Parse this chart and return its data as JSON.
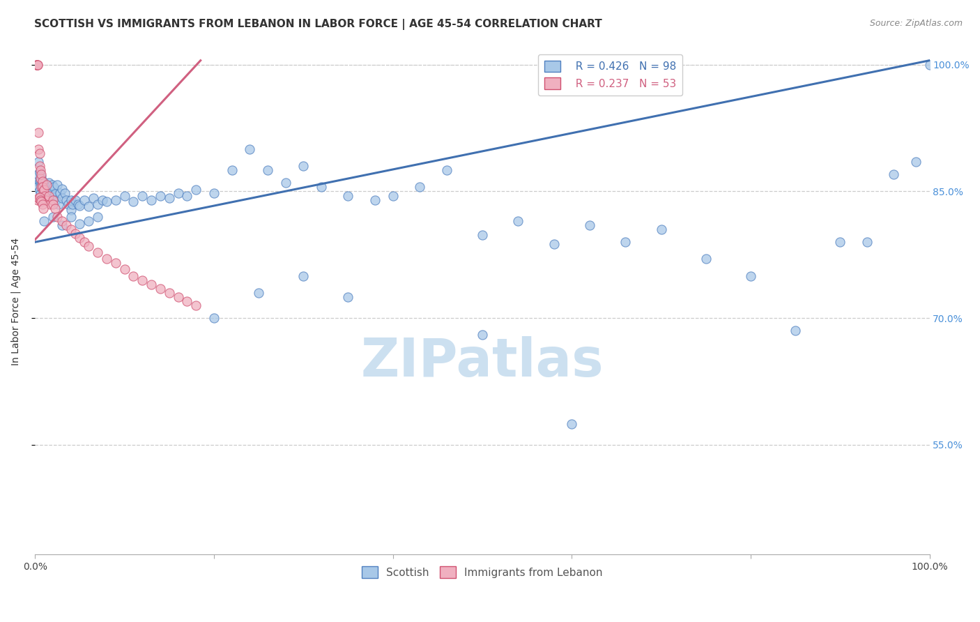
{
  "title": "SCOTTISH VS IMMIGRANTS FROM LEBANON IN LABOR FORCE | AGE 45-54 CORRELATION CHART",
  "source": "Source: ZipAtlas.com",
  "ylabel": "In Labor Force | Age 45-54",
  "xlim": [
    0.0,
    1.0
  ],
  "ylim": [
    0.42,
    1.02
  ],
  "yticks": [
    0.55,
    0.7,
    0.85,
    1.0
  ],
  "ytick_labels": [
    "55.0%",
    "70.0%",
    "85.0%",
    "100.0%"
  ],
  "xticks": [
    0.0,
    0.2,
    0.4,
    0.6,
    0.8,
    1.0
  ],
  "xtick_labels": [
    "0.0%",
    "",
    "",
    "",
    "",
    "100.0%"
  ],
  "legend_blue_r": "R = 0.426",
  "legend_blue_n": "N = 98",
  "legend_pink_r": "R = 0.237",
  "legend_pink_n": "N = 53",
  "watermark": "ZIPatlas",
  "blue_color": "#a8c8e8",
  "pink_color": "#f0b0c0",
  "blue_edge_color": "#5080c0",
  "pink_edge_color": "#d05070",
  "blue_line_color": "#4070b0",
  "pink_line_color": "#d06080",
  "blue_line_x": [
    0.0,
    1.0
  ],
  "blue_line_y": [
    0.79,
    1.005
  ],
  "pink_line_x": [
    0.0,
    0.185
  ],
  "pink_line_y": [
    0.793,
    1.005
  ],
  "blue_scatter_x": [
    0.002,
    0.003,
    0.004,
    0.004,
    0.005,
    0.005,
    0.005,
    0.006,
    0.006,
    0.007,
    0.007,
    0.008,
    0.008,
    0.009,
    0.01,
    0.01,
    0.011,
    0.012,
    0.013,
    0.014,
    0.015,
    0.016,
    0.017,
    0.018,
    0.019,
    0.02,
    0.021,
    0.022,
    0.023,
    0.025,
    0.026,
    0.028,
    0.03,
    0.03,
    0.033,
    0.035,
    0.037,
    0.04,
    0.04,
    0.042,
    0.045,
    0.048,
    0.05,
    0.055,
    0.06,
    0.065,
    0.07,
    0.075,
    0.08,
    0.09,
    0.1,
    0.11,
    0.12,
    0.13,
    0.14,
    0.15,
    0.16,
    0.17,
    0.18,
    0.2,
    0.22,
    0.24,
    0.26,
    0.28,
    0.3,
    0.32,
    0.35,
    0.38,
    0.4,
    0.43,
    0.46,
    0.5,
    0.54,
    0.58,
    0.62,
    0.66,
    0.7,
    0.75,
    0.8,
    0.85,
    0.9,
    0.93,
    0.96,
    0.985,
    1.0,
    0.01,
    0.02,
    0.03,
    0.04,
    0.05,
    0.06,
    0.07,
    0.2,
    0.3,
    0.5,
    0.6,
    0.35,
    0.25
  ],
  "blue_scatter_y": [
    0.862,
    0.87,
    0.856,
    0.885,
    0.873,
    0.862,
    0.851,
    0.863,
    0.847,
    0.858,
    0.868,
    0.855,
    0.862,
    0.851,
    0.857,
    0.843,
    0.86,
    0.852,
    0.856,
    0.848,
    0.86,
    0.855,
    0.847,
    0.85,
    0.858,
    0.843,
    0.855,
    0.847,
    0.84,
    0.858,
    0.835,
    0.848,
    0.842,
    0.853,
    0.848,
    0.84,
    0.835,
    0.84,
    0.828,
    0.835,
    0.84,
    0.835,
    0.833,
    0.84,
    0.832,
    0.842,
    0.835,
    0.84,
    0.838,
    0.84,
    0.845,
    0.838,
    0.845,
    0.84,
    0.845,
    0.842,
    0.848,
    0.845,
    0.852,
    0.848,
    0.875,
    0.9,
    0.875,
    0.86,
    0.88,
    0.855,
    0.845,
    0.84,
    0.845,
    0.855,
    0.875,
    0.798,
    0.815,
    0.788,
    0.81,
    0.79,
    0.805,
    0.77,
    0.75,
    0.685,
    0.79,
    0.79,
    0.87,
    0.885,
    1.0,
    0.815,
    0.82,
    0.81,
    0.82,
    0.812,
    0.815,
    0.82,
    0.7,
    0.75,
    0.68,
    0.575,
    0.725,
    0.73
  ],
  "pink_scatter_x": [
    0.001,
    0.002,
    0.002,
    0.003,
    0.003,
    0.004,
    0.004,
    0.005,
    0.005,
    0.006,
    0.006,
    0.007,
    0.007,
    0.008,
    0.008,
    0.009,
    0.01,
    0.01,
    0.011,
    0.012,
    0.013,
    0.015,
    0.017,
    0.02,
    0.02,
    0.022,
    0.025,
    0.03,
    0.035,
    0.04,
    0.045,
    0.05,
    0.055,
    0.06,
    0.07,
    0.08,
    0.09,
    0.1,
    0.11,
    0.12,
    0.13,
    0.14,
    0.15,
    0.16,
    0.17,
    0.18,
    0.003,
    0.004,
    0.005,
    0.006,
    0.007,
    0.008,
    0.009
  ],
  "pink_scatter_y": [
    1.0,
    1.0,
    1.0,
    1.0,
    1.0,
    0.92,
    0.9,
    0.895,
    0.88,
    0.875,
    0.865,
    0.87,
    0.855,
    0.862,
    0.855,
    0.85,
    0.852,
    0.84,
    0.845,
    0.84,
    0.858,
    0.845,
    0.835,
    0.84,
    0.835,
    0.83,
    0.82,
    0.815,
    0.81,
    0.805,
    0.8,
    0.795,
    0.79,
    0.785,
    0.778,
    0.77,
    0.765,
    0.758,
    0.75,
    0.745,
    0.74,
    0.735,
    0.73,
    0.725,
    0.72,
    0.715,
    0.84,
    0.842,
    0.843,
    0.84,
    0.838,
    0.835,
    0.83
  ],
  "title_fontsize": 11,
  "source_fontsize": 9,
  "label_fontsize": 10,
  "tick_fontsize": 10,
  "legend_fontsize": 11,
  "watermark_fontsize": 55,
  "watermark_color": "#cce0f0",
  "right_label_color": "#4a90d9",
  "grid_color": "#cccccc",
  "background_color": "#ffffff"
}
